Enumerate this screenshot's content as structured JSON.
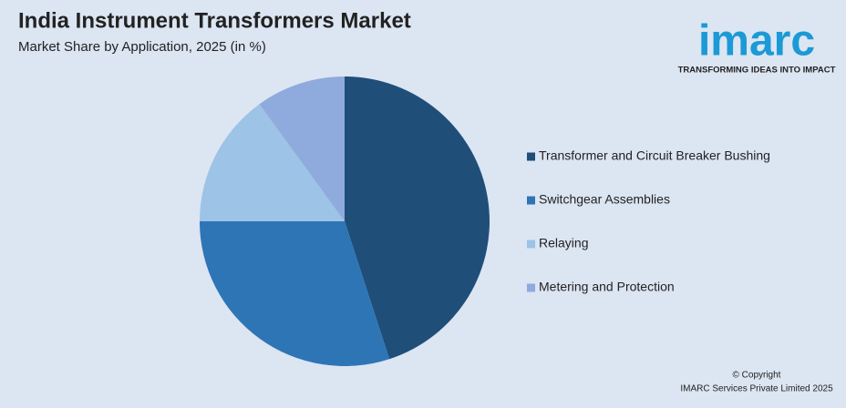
{
  "chart_data": {
    "type": "pie",
    "title": "India Instrument Transformers Market",
    "subtitle": "Market Share by Application, 2025 (in %)",
    "categories": [
      "Transformer and Circuit Breaker Bushing",
      "Switchgear Assemblies",
      "Relaying",
      "Metering and Protection"
    ],
    "values": [
      45,
      30,
      15,
      10
    ],
    "colors": [
      "#1f4e79",
      "#2e75b6",
      "#9dc3e6",
      "#8faadc"
    ]
  },
  "logo": {
    "name": "imarc",
    "tagline": "TRANSFORMING IDEAS INTO IMPACT"
  },
  "footer": {
    "copyright": "© Copyright",
    "company": "IMARC Services Private Limited 2025"
  }
}
